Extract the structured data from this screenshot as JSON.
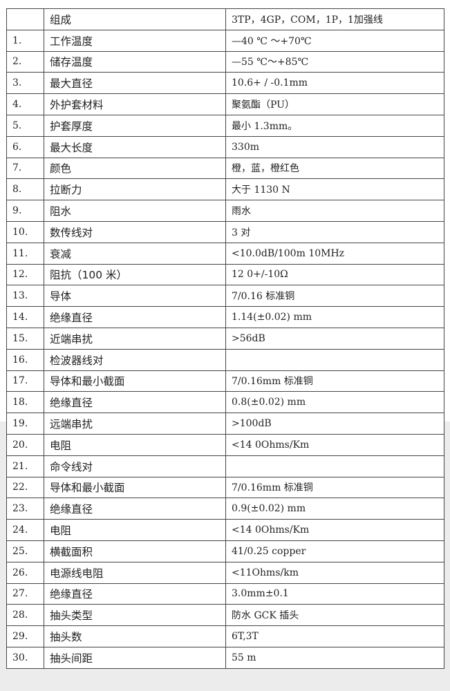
{
  "table": {
    "header": {
      "num": "",
      "name": "组成",
      "value": "3TP，4GP，COM，1P，1加强线"
    },
    "rows": [
      {
        "num": "1.",
        "name": "工作温度",
        "value": "—40 ℃ ～+70℃"
      },
      {
        "num": "2.",
        "name": "储存温度",
        "value": "—55 ℃～+85℃"
      },
      {
        "num": "3.",
        "name": "最大直径",
        "value": "10.6+ / -0.1mm"
      },
      {
        "num": "4.",
        "name": "外护套材料",
        "value": "聚氨酯（PU）"
      },
      {
        "num": "5.",
        "name": "护套厚度",
        "value": "最小 1.3mm。"
      },
      {
        "num": "6.",
        "name": "最大长度",
        "value": "330m"
      },
      {
        "num": "7.",
        "name": "颜色",
        "value": "橙，蓝，橙红色"
      },
      {
        "num": "8.",
        "name": "拉断力",
        "value": "大于 1130 N"
      },
      {
        "num": "9.",
        "name": "阻水",
        "value": "雨水"
      },
      {
        "num": "10.",
        "name": "数传线对",
        "value": "3 对"
      },
      {
        "num": "11.",
        "name": "衰减",
        "value": "<10.0dB/100m 10MHz"
      },
      {
        "num": "12.",
        "name": "阻抗（100 米）",
        "value": "12 0+/-10Ω"
      },
      {
        "num": "13.",
        "name": "导体",
        "value": "7/0.16 标准铜"
      },
      {
        "num": "14.",
        "name": "绝缘直径",
        "value": "1.14(±0.02) mm"
      },
      {
        "num": "15.",
        "name": "近端串扰",
        "value": ">56dB"
      },
      {
        "num": "16.",
        "name": "检波器线对",
        "value": ""
      },
      {
        "num": "17.",
        "name": "导体和最小截面",
        "value": "7/0.16mm 标准铜"
      },
      {
        "num": "18.",
        "name": "绝缘直径",
        "value": "0.8(±0.02) mm"
      },
      {
        "num": "19.",
        "name": "远端串扰",
        "value": ">100dB"
      },
      {
        "num": "20.",
        "name": "电阻",
        "value": "<14 0Ohms/Km"
      },
      {
        "num": "21.",
        "name": "命令线对",
        "value": ""
      },
      {
        "num": "22.",
        "name": "导体和最小截面",
        "value": "7/0.16mm 标准铜"
      },
      {
        "num": "23.",
        "name": "绝缘直径",
        "value": "0.9(±0.02) mm"
      },
      {
        "num": "24.",
        "name": "电阻",
        "value": "<14 0Ohms/Km"
      },
      {
        "num": "25.",
        "name": "横截面积",
        "value": "41/0.25 copper"
      },
      {
        "num": "26.",
        "name": "电源线电阻",
        "value": "<11Ohms/km"
      },
      {
        "num": "27.",
        "name": "绝缘直径",
        "value": "3.0mm±0.1"
      },
      {
        "num": "28.",
        "name": "抽头类型",
        "value": "防水 GCK 插头"
      },
      {
        "num": "29.",
        "name": "抽头数",
        "value": "6T,3T"
      },
      {
        "num": "30.",
        "name": "抽头间距",
        "value": "55 m"
      }
    ]
  }
}
